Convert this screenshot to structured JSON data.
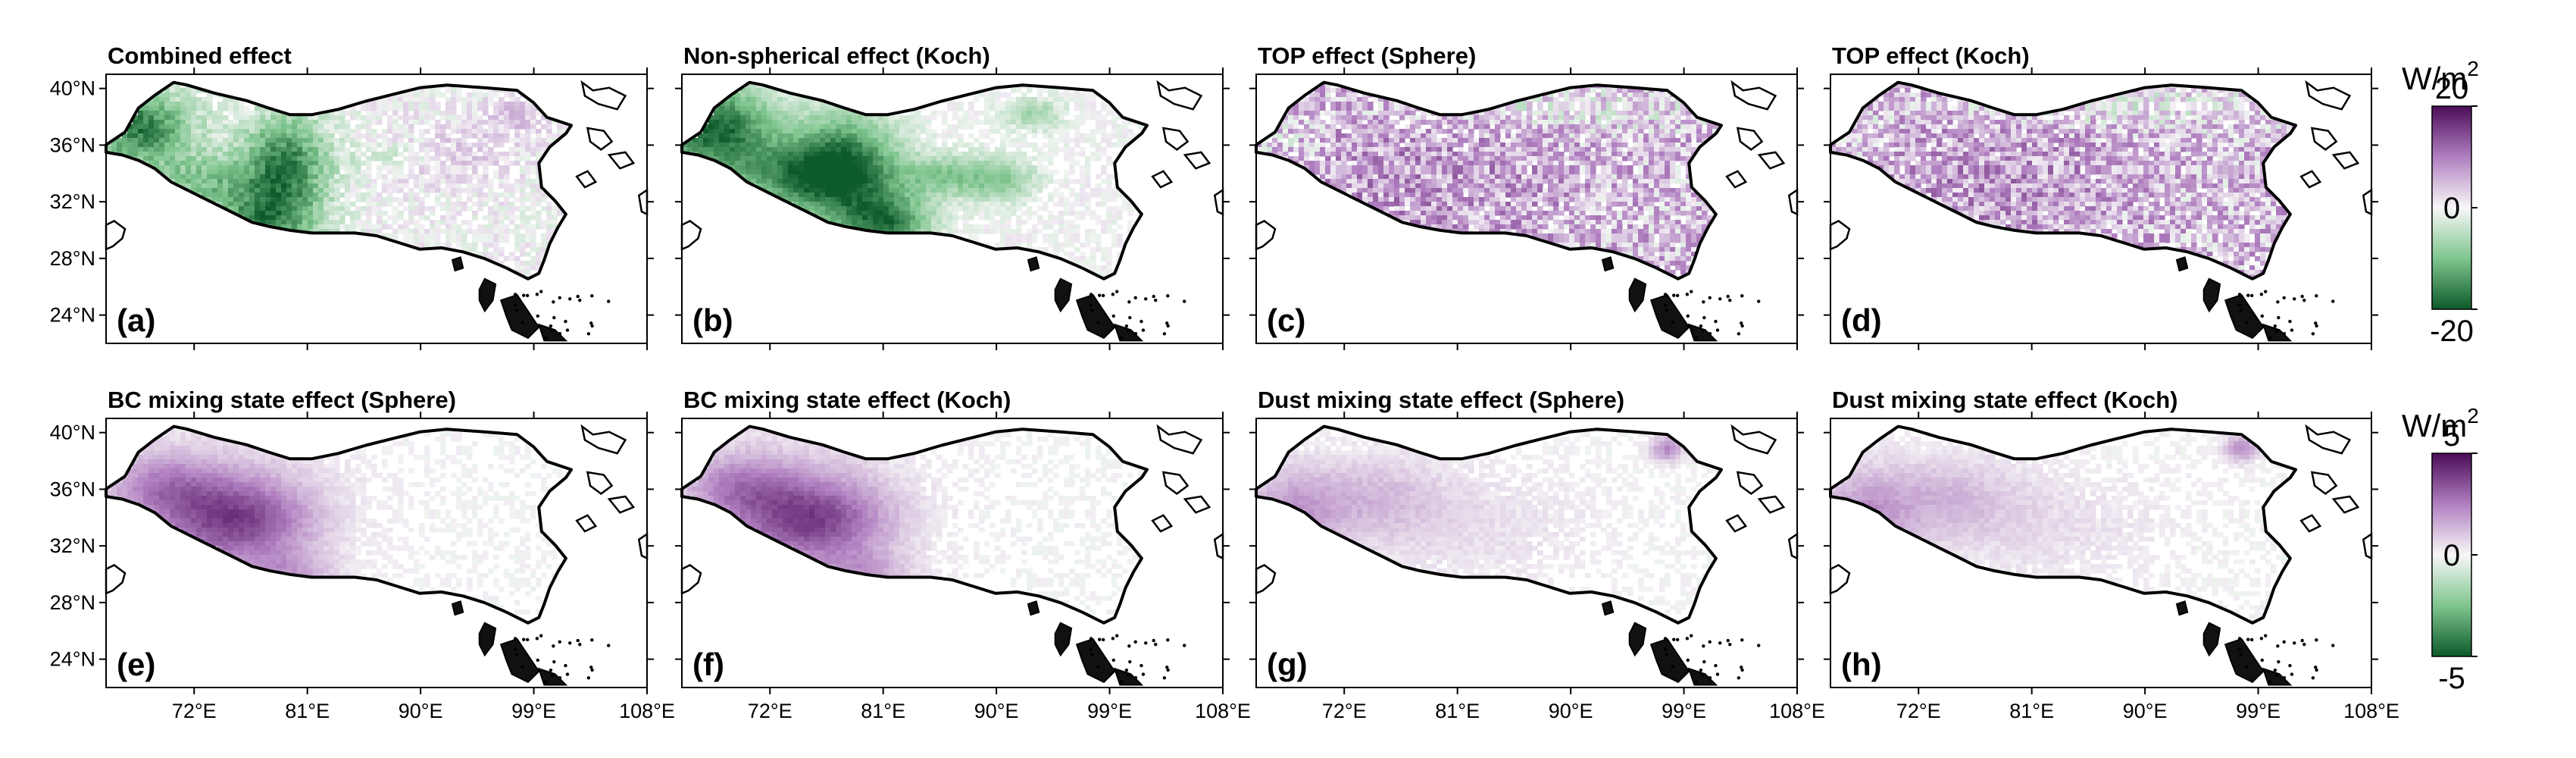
{
  "panels": [
    {
      "title": "Combined effect",
      "letter": "(a)",
      "scheme": "combined"
    },
    {
      "title": "Non-spherical effect (Koch)",
      "letter": "(b)",
      "scheme": "nonspherical"
    },
    {
      "title": "TOP effect (Sphere)",
      "letter": "(c)",
      "scheme": "top"
    },
    {
      "title": "TOP effect (Koch)",
      "letter": "(d)",
      "scheme": "top"
    },
    {
      "title": "BC mixing state effect (Sphere)",
      "letter": "(e)",
      "scheme": "bc"
    },
    {
      "title": "BC mixing state effect (Koch)",
      "letter": "(f)",
      "scheme": "bc"
    },
    {
      "title": "Dust mixing state effect (Sphere)",
      "letter": "(g)",
      "scheme": "dust"
    },
    {
      "title": "Dust mixing state effect (Koch)",
      "letter": "(h)",
      "scheme": "dust"
    }
  ],
  "axes": {
    "lat_ticks": [
      "40°N",
      "36°N",
      "32°N",
      "28°N",
      "24°N"
    ],
    "lat_values": [
      40,
      36,
      32,
      28,
      24
    ],
    "lon_ticks": [
      "72°E",
      "81°E",
      "90°E",
      "99°E",
      "108°E"
    ],
    "lon_values": [
      72,
      81,
      90,
      99,
      108
    ],
    "lon_range": [
      65,
      108
    ],
    "lat_range": [
      22,
      41
    ]
  },
  "colorbars": [
    {
      "unit": "W/m",
      "unit_exp": "2",
      "max_label": "20",
      "mid_label": "0",
      "min_label": "-20",
      "range": [
        -20,
        20
      ]
    },
    {
      "unit": "W/m",
      "unit_exp": "2",
      "max_label": "5",
      "mid_label": "0",
      "min_label": "-5",
      "range": [
        -5,
        5
      ]
    }
  ],
  "colors": {
    "positive": "#4d0a5a",
    "neutral": "#f7f7f7",
    "negative": "#0a5a28"
  }
}
